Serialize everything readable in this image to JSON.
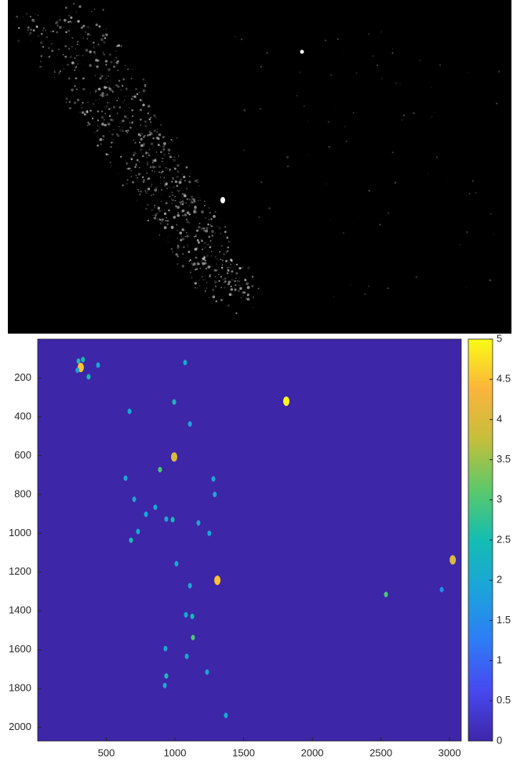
{
  "chart_data": {
    "type": "image",
    "xlim": [
      0,
      3085
    ],
    "ylim": [
      0,
      2070
    ],
    "y_reversed": true,
    "xticks": [
      500,
      1000,
      1500,
      2000,
      2500,
      3000
    ],
    "yticks": [
      200,
      400,
      600,
      800,
      1000,
      1200,
      1400,
      1600,
      1800,
      2000
    ],
    "clim": [
      0,
      5
    ],
    "cticks": [
      0,
      0.5,
      1,
      1.5,
      2,
      2.5,
      3,
      3.5,
      4,
      4.5,
      5
    ],
    "colormap": [
      "#3e26a8",
      "#4748f0",
      "#2e7cf6",
      "#1ba3db",
      "#13bdb2",
      "#5cc86a",
      "#c4bf3a",
      "#fbb43c",
      "#f9fb15"
    ],
    "x": [
      297,
      314,
      290,
      330,
      440,
      371,
      669,
      994,
      1811,
      1074,
      1109,
      994,
      891,
      1280,
      640,
      703,
      857,
      983,
      937,
      789,
      680,
      731,
      1171,
      1309,
      3023,
      2537,
      2943,
      1126,
      1080,
      1131,
      931,
      1086,
      937,
      926,
      1234,
      1371,
      1011,
      1109,
      1290,
      1250
    ],
    "y": [
      113,
      146,
      160,
      105,
      134,
      194,
      372,
      324,
      320,
      121,
      437,
      607,
      672,
      720,
      716,
      825,
      866,
      930,
      927,
      902,
      1036,
      991,
      947,
      1242,
      1137,
      1315,
      1290,
      1428,
      1420,
      1537,
      1594,
      1634,
      1735,
      1784,
      1715,
      1938,
      1157,
      1270,
      800,
      1000
    ],
    "values": [
      2.5,
      4.5,
      2,
      2.5,
      2,
      2.5,
      2,
      2.5,
      5,
      2,
      2,
      4,
      3,
      2,
      2,
      2,
      2,
      2.5,
      2,
      2,
      2.5,
      2,
      2,
      4.5,
      4,
      3,
      1.5,
      2.5,
      2,
      3,
      2,
      2,
      2.5,
      2,
      2,
      2,
      2,
      2,
      2,
      2
    ]
  }
}
